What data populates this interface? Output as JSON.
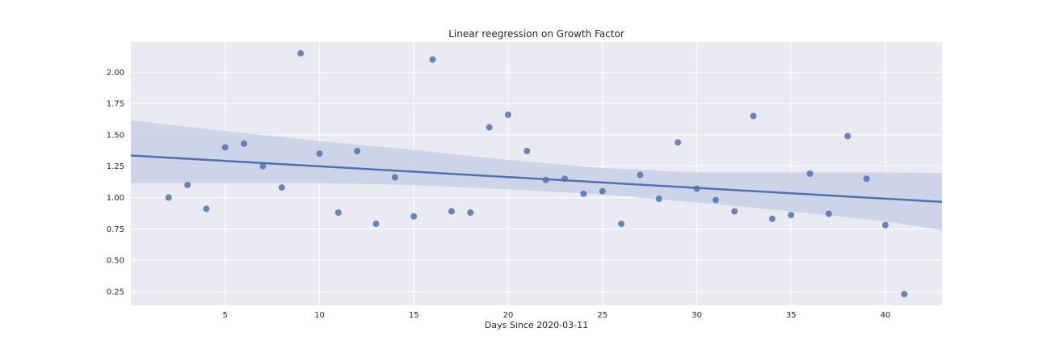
{
  "chart_data": {
    "type": "scatter",
    "title": "Linear reegression on Growth Factor",
    "xlabel": "Days Since 2020-03-11",
    "ylabel": "",
    "xlim": [
      0,
      43
    ],
    "ylim": [
      0.14,
      2.24
    ],
    "xticks": [
      5,
      10,
      15,
      20,
      25,
      30,
      35,
      40
    ],
    "yticks": [
      0.25,
      0.5,
      0.75,
      1.0,
      1.25,
      1.5,
      1.75,
      2.0
    ],
    "ytick_labels": [
      "0.25",
      "0.50",
      "0.75",
      "1.00",
      "1.25",
      "1.50",
      "1.75",
      "2.00"
    ],
    "grid": true,
    "style": "seaborn-darkgrid",
    "colors": {
      "background": "#EAEAF2",
      "grid": "#FFFFFF",
      "points": "#4C72B0",
      "line": "#4C72B0",
      "band": "#C9D0E6"
    },
    "x": [
      2,
      3,
      4,
      5,
      6,
      7,
      8,
      9,
      10,
      11,
      12,
      13,
      14,
      15,
      16,
      17,
      18,
      19,
      20,
      21,
      22,
      23,
      24,
      25,
      26,
      27,
      28,
      29,
      30,
      31,
      32,
      33,
      34,
      35,
      36,
      37,
      38,
      39,
      40,
      41
    ],
    "y": [
      1.0,
      1.1,
      0.91,
      1.4,
      1.43,
      1.25,
      1.08,
      2.15,
      1.35,
      0.88,
      1.37,
      0.79,
      1.16,
      0.85,
      2.1,
      0.89,
      0.88,
      1.56,
      1.66,
      1.37,
      1.14,
      1.15,
      1.03,
      1.05,
      0.79,
      1.18,
      0.99,
      1.44,
      1.07,
      0.98,
      0.89,
      1.65,
      0.83,
      0.86,
      1.19,
      0.87,
      1.49,
      1.15,
      0.78,
      0.23
    ],
    "regression": {
      "line": [
        [
          0,
          1.335
        ],
        [
          43,
          0.965
        ]
      ],
      "ci_upper": [
        [
          0,
          1.615
        ],
        [
          5,
          1.53
        ],
        [
          10,
          1.45
        ],
        [
          15,
          1.38
        ],
        [
          20,
          1.3
        ],
        [
          25,
          1.235
        ],
        [
          30,
          1.2
        ],
        [
          35,
          1.2
        ],
        [
          40,
          1.2
        ],
        [
          43,
          1.195
        ]
      ],
      "ci_lower": [
        [
          0,
          1.115
        ],
        [
          5,
          1.115
        ],
        [
          10,
          1.115
        ],
        [
          15,
          1.1
        ],
        [
          20,
          1.065
        ],
        [
          25,
          1.025
        ],
        [
          30,
          0.96
        ],
        [
          35,
          0.89
        ],
        [
          40,
          0.81
        ],
        [
          43,
          0.74
        ]
      ]
    }
  }
}
